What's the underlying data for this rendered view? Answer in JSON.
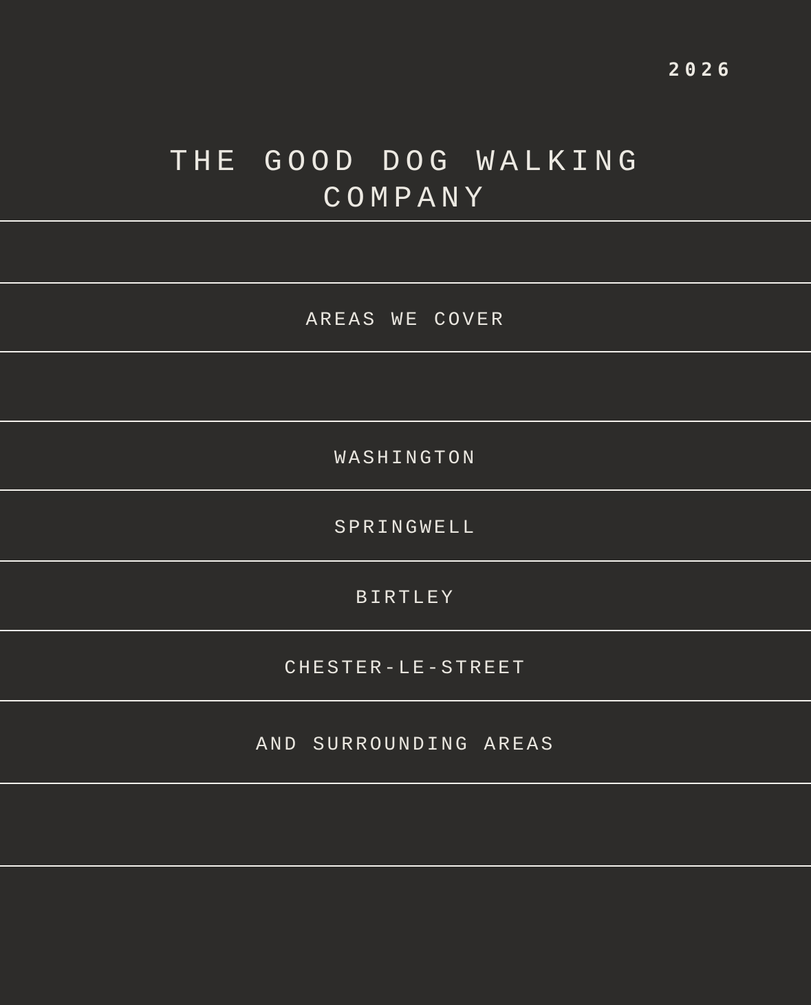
{
  "poster": {
    "year": "2026",
    "title": {
      "line1": "THE GOOD DOG WALKING",
      "line2": "COMPANY"
    },
    "section_header": "AREAS WE COVER",
    "areas": [
      "WASHINGTON",
      "SPRINGWELL",
      "BIRTLEY",
      "CHESTER-LE-STREET"
    ],
    "footnote": "AND SURROUNDING AREAS",
    "colors": {
      "background": "#2d2c2a",
      "text": "#e9e6df",
      "divider": "#f4f2ed"
    }
  }
}
